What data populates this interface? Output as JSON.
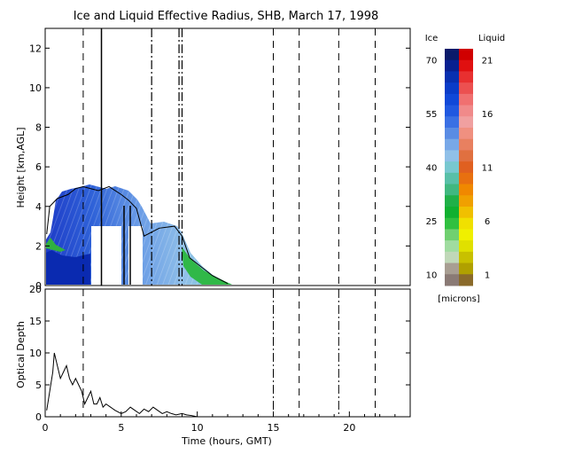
{
  "title": "Ice and Liquid Effective Radius, SHB, March 17, 1998",
  "colors": {
    "axis": "#000000",
    "ice_low": "#8a7a75",
    "ice_high": "#0a1a6a",
    "liquid_low": "#8a6a2a",
    "liquid_high": "#d00000",
    "cloud_blue": "#2e5fd6",
    "cloud_light": "#8fb8e8",
    "cloud_green": "#3ab84a"
  },
  "colorbar": {
    "ice_title": "Ice",
    "liquid_title": "Liquid",
    "units": "[microns]",
    "ice_ticks": [
      "70",
      "55",
      "40",
      "25",
      "10"
    ],
    "liquid_ticks": [
      "21",
      "16",
      "11",
      "6",
      "1"
    ],
    "ice_colors": [
      "#0a1a6a",
      "#082090",
      "#0830b0",
      "#0a3cc8",
      "#1048d8",
      "#2058e0",
      "#3a70e4",
      "#5a8ce4",
      "#78a8e8",
      "#90c0e8",
      "#78c8d0",
      "#58c0a8",
      "#40b880",
      "#20b048",
      "#10b030",
      "#30c040",
      "#70d070",
      "#a0dca0",
      "#c0d8b8",
      "#a89e92",
      "#8a7a75"
    ],
    "liquid_colors": [
      "#d00000",
      "#e01010",
      "#e83030",
      "#ec5050",
      "#f07070",
      "#f08a8a",
      "#f0a0a0",
      "#f09080",
      "#e88060",
      "#e07040",
      "#e06020",
      "#e87010",
      "#f08800",
      "#f0a000",
      "#f0c000",
      "#f0e000",
      "#f0f000",
      "#e0e000",
      "#c8c000",
      "#b0a000",
      "#8a6a2a"
    ]
  },
  "chart_data": [
    {
      "type": "heatmap",
      "title": "Ice and Liquid Effective Radius, SHB, March 17, 1998",
      "xlabel": "",
      "ylabel": "Height [km,AGL]",
      "xlim": [
        0,
        24
      ],
      "ylim": [
        0,
        13
      ],
      "y_ticks": [
        0,
        2,
        4,
        6,
        8,
        10,
        12
      ],
      "y_tick_labels": [
        "0",
        "2",
        "4",
        "6",
        "8",
        "10",
        "12"
      ],
      "cloud_top_km": [
        [
          0.1,
          2.6
        ],
        [
          0.3,
          4.0
        ],
        [
          0.8,
          4.4
        ],
        [
          1.5,
          4.6
        ],
        [
          2.0,
          4.9
        ],
        [
          2.5,
          5.0
        ],
        [
          3.5,
          4.8
        ],
        [
          4.2,
          5.0
        ],
        [
          5.0,
          4.6
        ],
        [
          5.5,
          4.3
        ],
        [
          6.0,
          3.9
        ],
        [
          6.5,
          2.5
        ],
        [
          7.5,
          2.9
        ],
        [
          8.5,
          3.0
        ],
        [
          9.0,
          2.5
        ],
        [
          9.5,
          1.4
        ],
        [
          10.0,
          1.1
        ],
        [
          11.0,
          0.5
        ],
        [
          12.0,
          0.1
        ]
      ],
      "dashed_times_hours": [
        2.5,
        15.0,
        16.7,
        19.3,
        21.7
      ],
      "dashdot_times_hours": [
        7.0,
        8.8,
        9.0
      ],
      "solid_times_hours": [
        3.7
      ]
    },
    {
      "type": "line",
      "xlabel": "Time (hours, GMT)",
      "ylabel": "Optical Depth",
      "xlim": [
        0,
        24
      ],
      "ylim": [
        0,
        20
      ],
      "x_ticks": [
        0,
        5,
        10,
        15,
        20
      ],
      "x_tick_labels": [
        "0",
        "5",
        "10",
        "15",
        "20"
      ],
      "y_ticks": [
        0,
        5,
        10,
        15,
        20
      ],
      "y_tick_labels": [
        "0",
        "5",
        "10",
        "15",
        "20"
      ],
      "series": [
        {
          "x": [
            0.1,
            0.3,
            0.5,
            0.6,
            0.8,
            1.0,
            1.2,
            1.4,
            1.6,
            1.8,
            2.0,
            2.2,
            2.4,
            2.6,
            2.8,
            3.0,
            3.2,
            3.4,
            3.6,
            3.8,
            4.0,
            4.3,
            4.6,
            5.0,
            5.3,
            5.6,
            5.9,
            6.2,
            6.5,
            6.8,
            7.1,
            7.4,
            7.7,
            8.0,
            8.3,
            8.6,
            9.0,
            9.3,
            9.6,
            10.0
          ],
          "y": [
            1,
            4,
            7,
            10,
            8,
            6,
            7,
            8,
            6,
            5,
            6,
            5,
            4,
            2,
            3,
            4,
            2,
            2,
            3,
            1.5,
            2,
            1.5,
            1,
            0.5,
            0.8,
            1.5,
            1,
            0.5,
            1.2,
            0.8,
            1.5,
            1,
            0.5,
            0.8,
            0.5,
            0.3,
            0.5,
            0.3,
            0.2,
            0
          ]
        }
      ],
      "dashed_times_hours": [
        2.5,
        15.0,
        16.7,
        19.3,
        21.7
      ],
      "dashdot_times_hours": [
        15.0,
        19.3
      ]
    }
  ]
}
